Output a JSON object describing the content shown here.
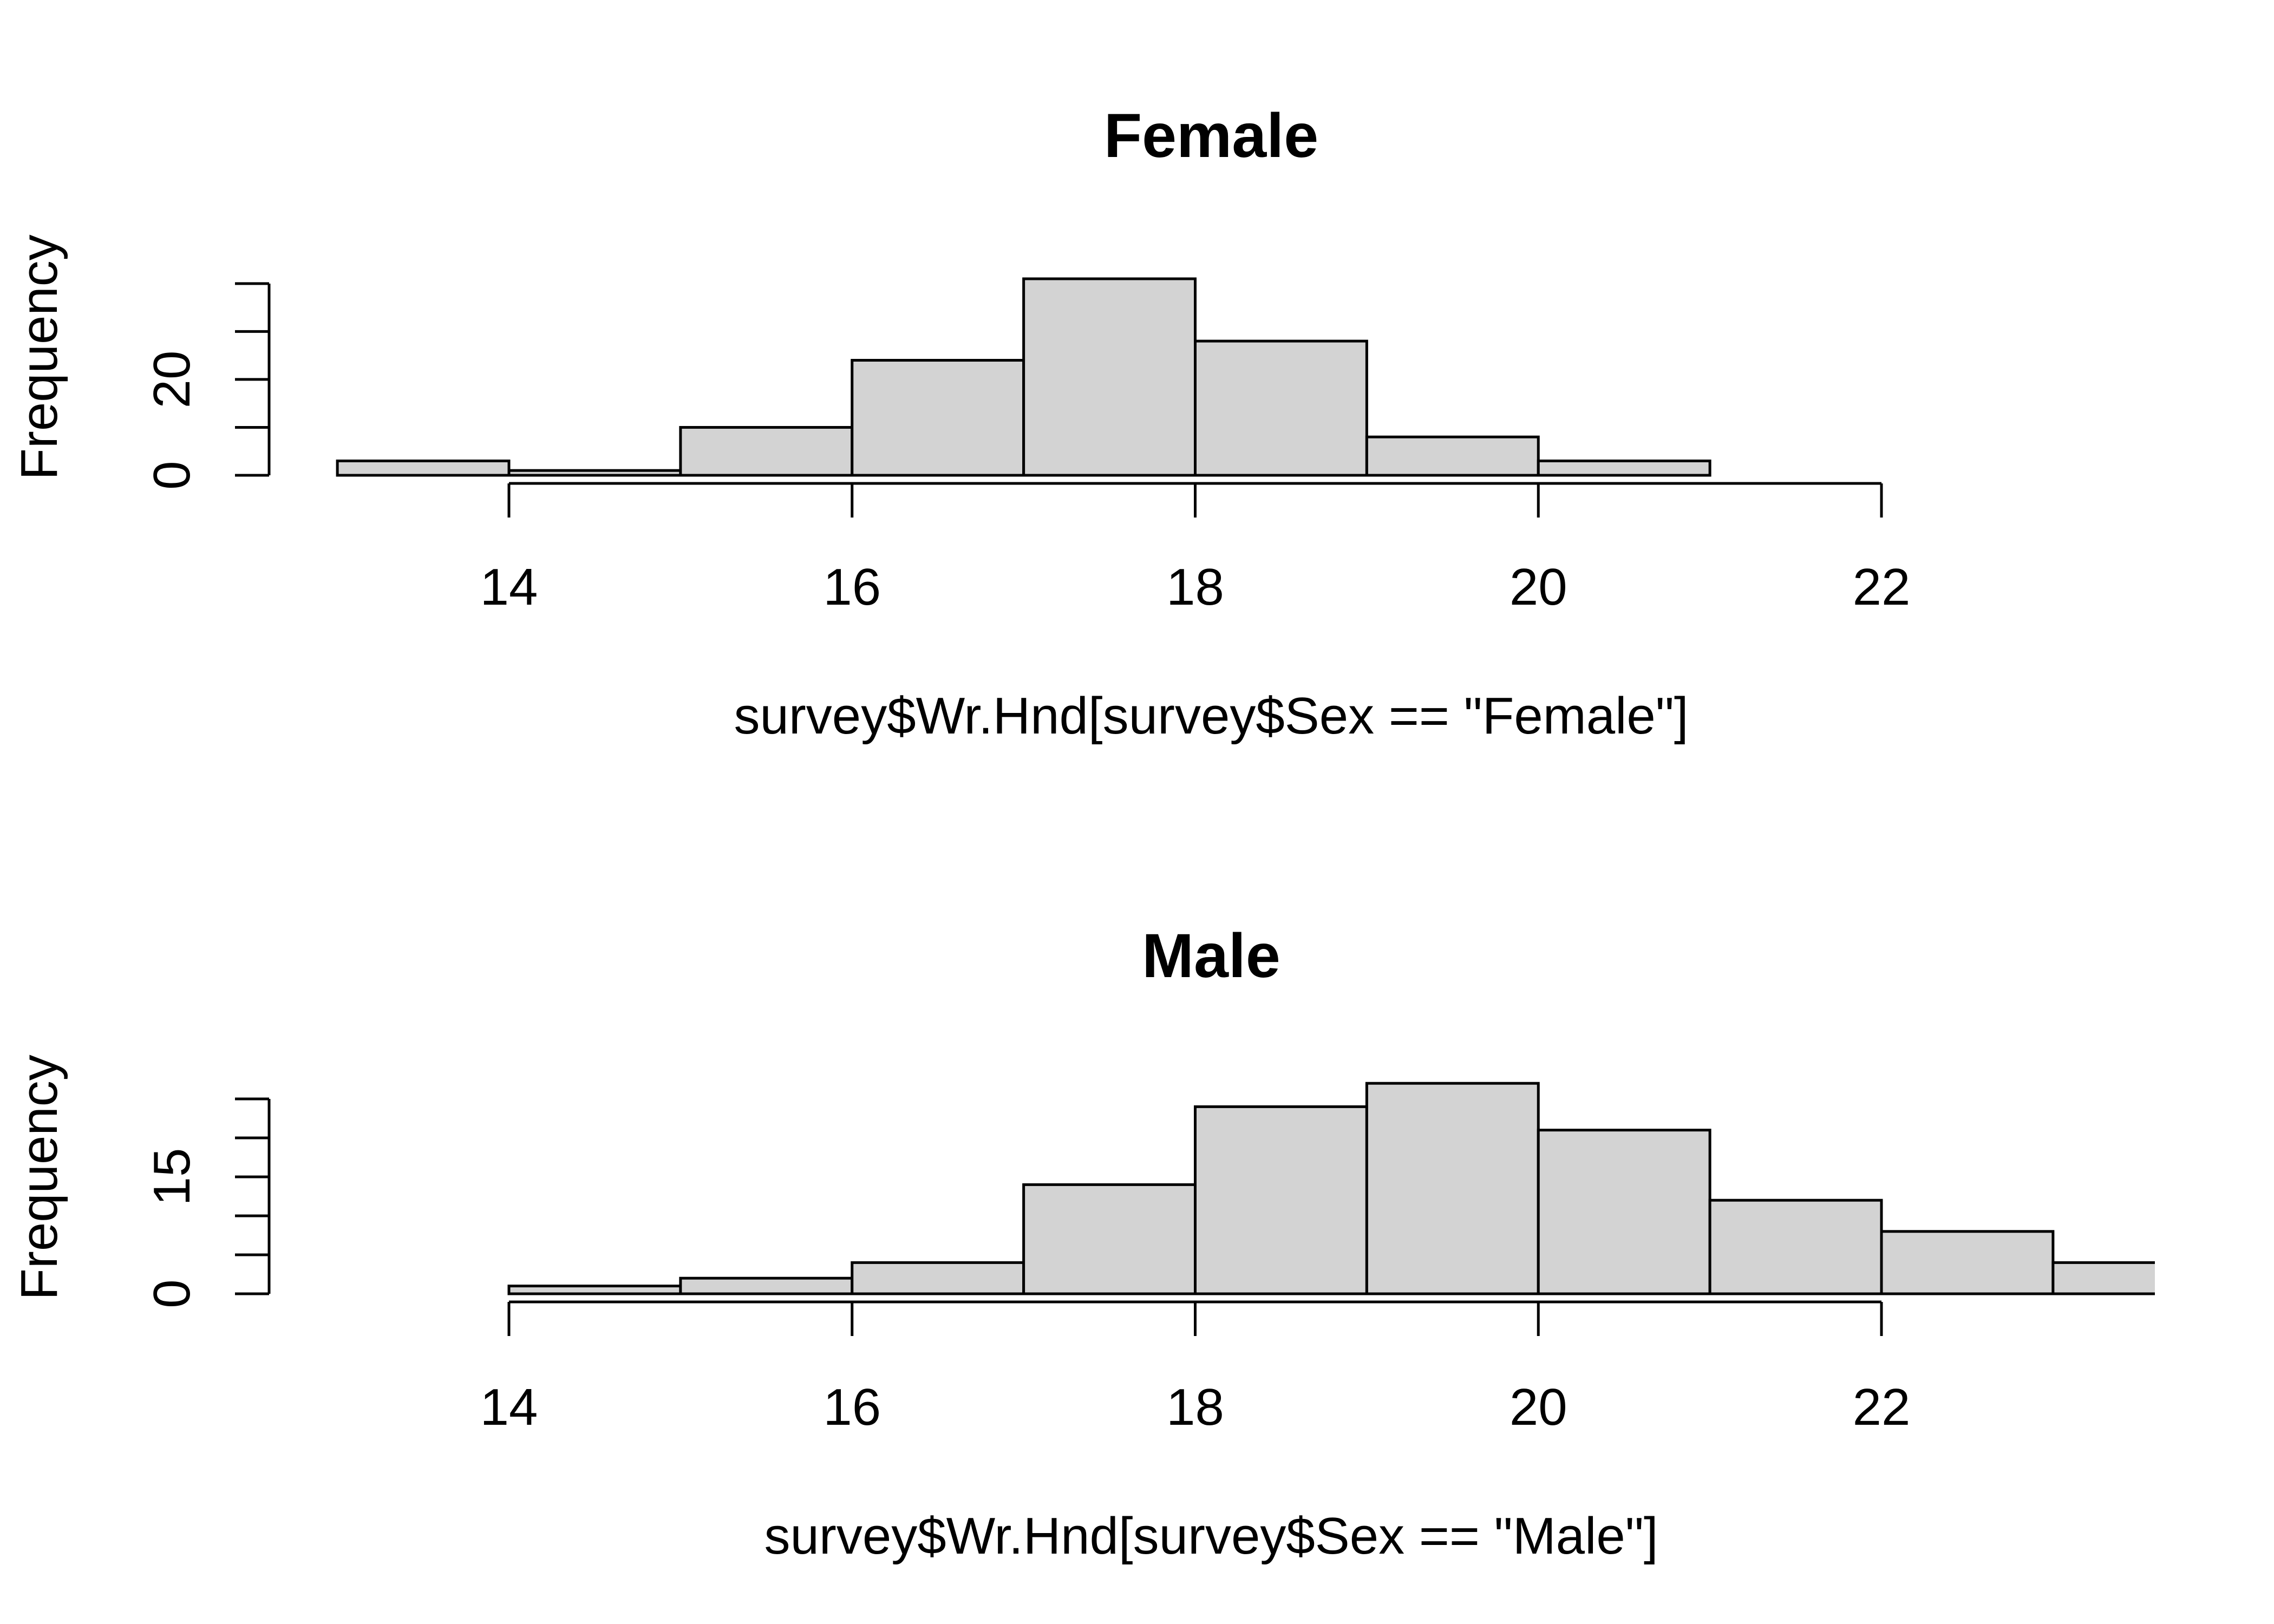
{
  "chart_data": [
    {
      "type": "bar",
      "title": "Female",
      "xlabel": "survey$Wr.Hnd[survey$Sex == \"Female\"]",
      "ylabel": "Frequency",
      "bins": [
        {
          "x0": 13,
          "x1": 14,
          "count": 3
        },
        {
          "x0": 14,
          "x1": 15,
          "count": 1
        },
        {
          "x0": 15,
          "x1": 16,
          "count": 10
        },
        {
          "x0": 16,
          "x1": 17,
          "count": 24
        },
        {
          "x0": 17,
          "x1": 18,
          "count": 41
        },
        {
          "x0": 18,
          "x1": 19,
          "count": 28
        },
        {
          "x0": 19,
          "x1": 20,
          "count": 8
        },
        {
          "x0": 20,
          "x1": 21,
          "count": 3
        }
      ],
      "xticks": [
        14,
        16,
        18,
        20,
        22
      ],
      "xtick_labels": [
        "14",
        "16",
        "18",
        "20",
        "22"
      ],
      "yticks": [
        0,
        10,
        20,
        30,
        40
      ],
      "ytick_labels": [
        "0",
        "",
        "20",
        "",
        ""
      ],
      "xlim": [
        12.6,
        24.2
      ],
      "ylim": [
        0,
        41
      ],
      "grid": false,
      "bar_color": "#d3d3d3"
    },
    {
      "type": "bar",
      "title": "Male",
      "xlabel": "survey$Wr.Hnd[survey$Sex == \"Male\"]",
      "ylabel": "Frequency",
      "bins": [
        {
          "x0": 14,
          "x1": 15,
          "count": 1
        },
        {
          "x0": 15,
          "x1": 16,
          "count": 2
        },
        {
          "x0": 16,
          "x1": 17,
          "count": 4
        },
        {
          "x0": 17,
          "x1": 18,
          "count": 14
        },
        {
          "x0": 18,
          "x1": 19,
          "count": 24
        },
        {
          "x0": 19,
          "x1": 20,
          "count": 27
        },
        {
          "x0": 20,
          "x1": 21,
          "count": 21
        },
        {
          "x0": 21,
          "x1": 22,
          "count": 12
        },
        {
          "x0": 22,
          "x1": 23,
          "count": 8
        },
        {
          "x0": 23,
          "x1": 24,
          "count": 4
        }
      ],
      "xticks": [
        14,
        16,
        18,
        20,
        22
      ],
      "xtick_labels": [
        "14",
        "16",
        "18",
        "20",
        "22"
      ],
      "yticks": [
        0,
        5,
        10,
        15,
        20,
        25
      ],
      "ytick_labels": [
        "0",
        "",
        "",
        "15",
        "",
        ""
      ],
      "xlim": [
        12.6,
        24.2
      ],
      "ylim": [
        0,
        25
      ],
      "grid": false,
      "bar_color": "#d3d3d3"
    }
  ]
}
